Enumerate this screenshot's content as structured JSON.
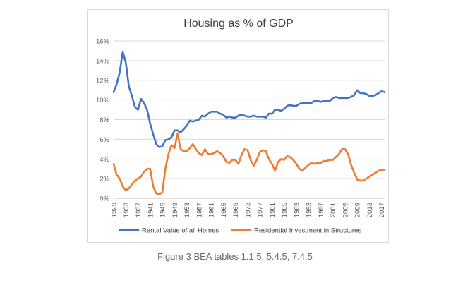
{
  "caption": "Figure 3 BEA tables 1.1.5, 5.4.5, 7.4.5",
  "chart_data": {
    "type": "line",
    "title": "Housing as % of GDP",
    "xlabel": "",
    "ylabel": "",
    "ylim": [
      0,
      16
    ],
    "y_ticks": [
      "0%",
      "2%",
      "4%",
      "6%",
      "8%",
      "10%",
      "12%",
      "14%",
      "16%"
    ],
    "x_tick_labels": [
      "1929",
      "1933",
      "1937",
      "1941",
      "1945",
      "1949",
      "1953",
      "1957",
      "1961",
      "1965",
      "1969",
      "1973",
      "1977",
      "1981",
      "1985",
      "1989",
      "1993",
      "1997",
      "2001",
      "2005",
      "2009",
      "2013",
      "2017"
    ],
    "grid": "horizontal",
    "legend_position": "bottom",
    "x": [
      1929,
      1930,
      1931,
      1932,
      1933,
      1934,
      1935,
      1936,
      1937,
      1938,
      1939,
      1940,
      1941,
      1942,
      1943,
      1944,
      1945,
      1946,
      1947,
      1948,
      1949,
      1950,
      1951,
      1952,
      1953,
      1954,
      1955,
      1956,
      1957,
      1958,
      1959,
      1960,
      1961,
      1962,
      1963,
      1964,
      1965,
      1966,
      1967,
      1968,
      1969,
      1970,
      1971,
      1972,
      1973,
      1974,
      1975,
      1976,
      1977,
      1978,
      1979,
      1980,
      1981,
      1982,
      1983,
      1984,
      1985,
      1986,
      1987,
      1988,
      1989,
      1990,
      1991,
      1992,
      1993,
      1994,
      1995,
      1996,
      1997,
      1998,
      1999,
      2000,
      2001,
      2002,
      2003,
      2004,
      2005,
      2006,
      2007,
      2008,
      2009,
      2010,
      2011,
      2012,
      2013,
      2014,
      2015,
      2016,
      2017,
      2018
    ],
    "series": [
      {
        "name": "Rental Value of all Homes",
        "color": "#4472c4",
        "values": [
          10.8,
          11.6,
          12.8,
          14.9,
          13.8,
          11.4,
          10.4,
          9.3,
          9.0,
          10.1,
          9.7,
          9.0,
          7.6,
          6.5,
          5.5,
          5.2,
          5.3,
          5.9,
          6.0,
          6.2,
          6.9,
          6.9,
          6.7,
          7.0,
          7.4,
          7.9,
          7.8,
          7.9,
          8.0,
          8.4,
          8.3,
          8.6,
          8.8,
          8.8,
          8.8,
          8.6,
          8.5,
          8.2,
          8.3,
          8.2,
          8.2,
          8.4,
          8.5,
          8.4,
          8.3,
          8.3,
          8.4,
          8.3,
          8.3,
          8.3,
          8.2,
          8.6,
          8.6,
          9.0,
          9.0,
          8.9,
          9.1,
          9.4,
          9.5,
          9.4,
          9.4,
          9.6,
          9.7,
          9.7,
          9.7,
          9.7,
          9.9,
          9.9,
          9.8,
          9.9,
          9.9,
          9.9,
          10.2,
          10.3,
          10.2,
          10.2,
          10.2,
          10.2,
          10.3,
          10.5,
          11.0,
          10.7,
          10.7,
          10.6,
          10.4,
          10.4,
          10.5,
          10.7,
          10.9,
          10.8
        ]
      },
      {
        "name": "Residential Investment in Structures",
        "color": "#ed7d31",
        "values": [
          3.5,
          2.4,
          2.0,
          1.2,
          0.8,
          1.0,
          1.4,
          1.8,
          2.0,
          2.2,
          2.7,
          3.0,
          3.0,
          1.2,
          0.5,
          0.4,
          0.6,
          3.0,
          4.5,
          5.4,
          5.1,
          6.6,
          5.0,
          4.8,
          4.8,
          5.1,
          5.5,
          5.0,
          4.6,
          4.4,
          5.0,
          4.5,
          4.5,
          4.6,
          4.8,
          4.6,
          4.3,
          3.7,
          3.6,
          3.9,
          3.9,
          3.5,
          4.4,
          5.0,
          4.9,
          3.9,
          3.3,
          3.9,
          4.7,
          4.9,
          4.8,
          4.0,
          3.5,
          2.8,
          3.7,
          4.0,
          3.9,
          4.3,
          4.2,
          3.9,
          3.5,
          3.0,
          2.8,
          3.1,
          3.4,
          3.6,
          3.5,
          3.6,
          3.6,
          3.8,
          3.8,
          3.9,
          3.9,
          4.2,
          4.5,
          5.0,
          5.0,
          4.5,
          3.4,
          2.6,
          1.9,
          1.8,
          1.8,
          2.0,
          2.2,
          2.4,
          2.6,
          2.8,
          2.9,
          2.9
        ]
      }
    ]
  }
}
